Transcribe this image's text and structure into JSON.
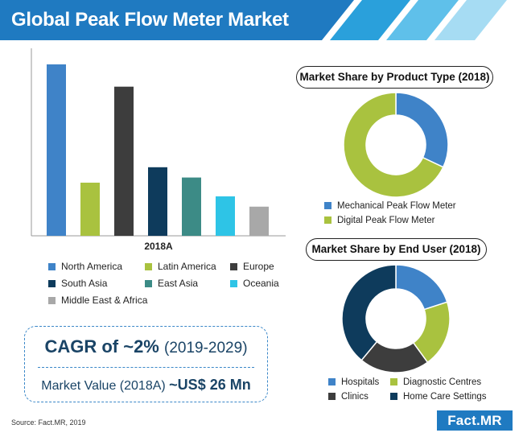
{
  "title": "Global Peak Flow Meter Market",
  "colors": {
    "banner": "#1f7ac1",
    "north_america": "#3f83c8",
    "latin_america": "#a9c23f",
    "europe": "#3d3d3d",
    "south_asia": "#0e3b5c",
    "east_asia": "#3c8b86",
    "oceania": "#2ec4e6",
    "middle_east_africa": "#a8a8a8",
    "mechanical": "#3f83c8",
    "digital": "#a9c23f",
    "hospitals": "#3f83c8",
    "diagnostic": "#a9c23f",
    "clinics": "#3d3d3d",
    "home_care": "#0e3b5c"
  },
  "chart_data": [
    {
      "type": "bar",
      "categories": [
        "2018A"
      ],
      "series": [
        {
          "name": "North America",
          "values": [
            100
          ]
        },
        {
          "name": "Latin America",
          "values": [
            31
          ]
        },
        {
          "name": "Europe",
          "values": [
            87
          ]
        },
        {
          "name": "South Asia",
          "values": [
            40
          ]
        },
        {
          "name": "East Asia",
          "values": [
            34
          ]
        },
        {
          "name": "Oceania",
          "values": [
            23
          ]
        },
        {
          "name": "Middle East & Africa",
          "values": [
            17
          ]
        }
      ],
      "xlabel": "2018A",
      "ylim": [
        0,
        100
      ],
      "grid": false,
      "legend": "bottom"
    },
    {
      "type": "pie",
      "title": "Market Share by Product Type (2018)",
      "labels": [
        "Mechanical Peak Flow Meter",
        "Digital Peak Flow Meter"
      ],
      "values": [
        32,
        68
      ],
      "legend": "bottom"
    },
    {
      "type": "pie",
      "title": "Market Share by End User (2018)",
      "labels": [
        "Hospitals",
        "Diagnostic Centres",
        "Clinics",
        "Home Care Settings"
      ],
      "values": [
        20,
        20,
        21,
        39
      ],
      "legend": "bottom"
    }
  ],
  "cagr": {
    "label": "CAGR of ~2%",
    "period": "(2019-2029)",
    "value_label": "Market Value (2018A)",
    "value": "~US$ 26 Mn"
  },
  "source": "Source: Fact.MR, 2019",
  "logo": {
    "text": "Fact",
    "suffix": "MR",
    "dot": "."
  }
}
